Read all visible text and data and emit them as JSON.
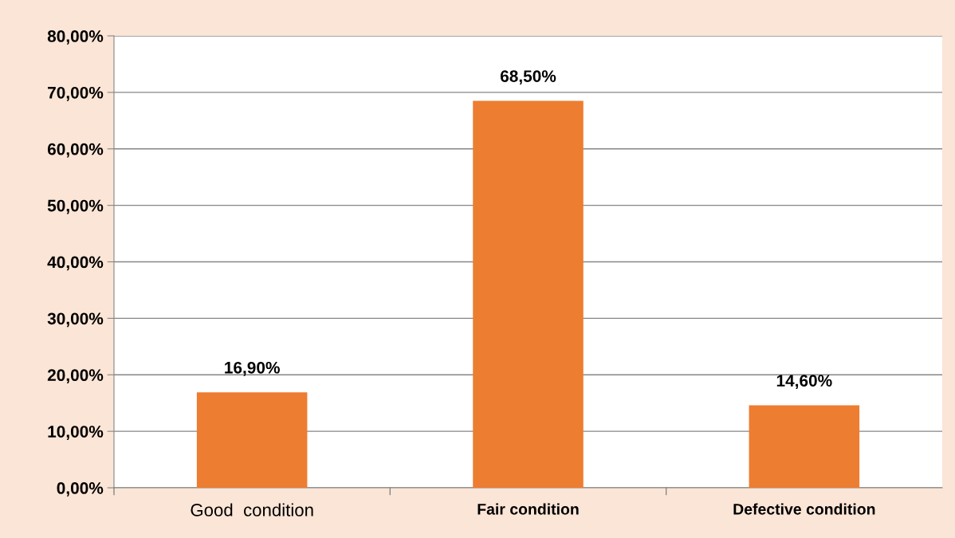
{
  "chart_data": {
    "type": "bar",
    "categories": [
      "Good  condition",
      "Fair condition",
      "Defective condition"
    ],
    "values": [
      16.9,
      68.5,
      14.6
    ],
    "color": "#ed7d31",
    "value_labels": [
      "16,90%",
      "68,50%",
      "14,60%"
    ],
    "ylim": [
      0,
      80
    ],
    "yticks": [
      {
        "value": 0,
        "label": "0,00%"
      },
      {
        "value": 10,
        "label": "10,00%"
      },
      {
        "value": 20,
        "label": "20,00%"
      },
      {
        "value": 30,
        "label": "30,00%"
      },
      {
        "value": 40,
        "label": "40,00%"
      },
      {
        "value": 50,
        "label": "50,00%"
      },
      {
        "value": 60,
        "label": "60,00%"
      },
      {
        "value": 70,
        "label": "70,00%"
      },
      {
        "value": 80,
        "label": "80,00%"
      }
    ],
    "grid": "y",
    "legend": false
  }
}
